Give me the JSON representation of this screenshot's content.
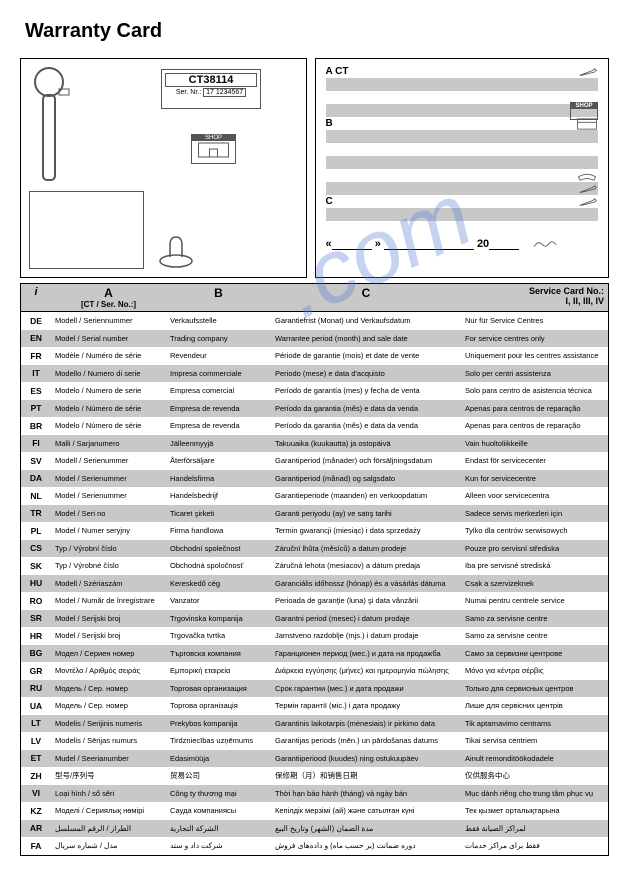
{
  "title": "Warranty Card",
  "watermark": ".com",
  "label": {
    "model": "CT38114",
    "serial_prefix": "Ser. Nr.:",
    "serial": "17 1234567"
  },
  "shop_label": "SHOP",
  "sections": {
    "A": "A    CT",
    "B": "B",
    "C": "C"
  },
  "date_row": {
    "open": "«",
    "mid": "»",
    "year_prefix": "20"
  },
  "table_header": {
    "info": "i",
    "a": "A",
    "a_sub": "[CT / Ser. No.:]",
    "b": "B",
    "c": "C",
    "d": "Service Card No.:",
    "d_sub": "I, II, III, IV"
  },
  "rows": [
    {
      "code": "DE",
      "a": "Modell / Seriennummer",
      "b": "Verkaufsstelle",
      "c": "Garantiefrist (Monat) und Verkaufsdatum",
      "d": "Nur für Service Centres"
    },
    {
      "code": "EN",
      "a": "Model / Serial number",
      "b": "Trading company",
      "c": "Warrantee period (month) and sale date",
      "d": "For service centres only"
    },
    {
      "code": "FR",
      "a": "Modèle / Numéro de série",
      "b": "Revendeur",
      "c": "Période de garantie (mois) et date de vente",
      "d": "Uniquement pour les centres assistance"
    },
    {
      "code": "IT",
      "a": "Modello / Numero di serie",
      "b": "Impresa commerciale",
      "c": "Periodo (mese) e data d'acquisto",
      "d": "Solo per centri assistenza"
    },
    {
      "code": "ES",
      "a": "Modelo / Numero de serie",
      "b": "Empresa comercial",
      "c": "Período de garantía (mes) y fecha de venta",
      "d": "Solo para centro de asistencia técnica"
    },
    {
      "code": "PT",
      "a": "Modelo / Número de série",
      "b": "Empresa de revenda",
      "c": "Período da garantia (mês) e data da venda",
      "d": "Apenas para centros de reparação"
    },
    {
      "code": "BR",
      "a": "Modelo / Número de série",
      "b": "Empresa de revenda",
      "c": "Período da garantia (mês) e data da venda",
      "d": "Apenas para centros de reparação"
    },
    {
      "code": "FI",
      "a": "Malli / Sarjanumero",
      "b": "Jälleenmyyjä",
      "c": "Takuuaika (kuukautta) ja ostopäivä",
      "d": "Vain huoltoliikkeille"
    },
    {
      "code": "SV",
      "a": "Modell / Serienummer",
      "b": "Återförsäljare",
      "c": "Garantiperiod (månader) och försäljningsdatum",
      "d": "Endast för servicecenter"
    },
    {
      "code": "DA",
      "a": "Model / Serienummer",
      "b": "Handelsfirma",
      "c": "Garantiperiod (månad) og salgsdato",
      "d": "Kun for servicecentre"
    },
    {
      "code": "NL",
      "a": "Model / Serienummer",
      "b": "Handelsbedrijf",
      "c": "Garantieperiode (maanden) en verkoopdatum",
      "d": "Alleen voor servicecentra"
    },
    {
      "code": "TR",
      "a": "Model / Seri no",
      "b": "Ticaret şirketi",
      "c": "Garanti periyodu (ay) ve satış tarihi",
      "d": "Sadece servis merkezleri için"
    },
    {
      "code": "PL",
      "a": "Model / Numer seryjny",
      "b": "Firma handlowa",
      "c": "Termin gwarancji (miesiąc) i data sprzedaży",
      "d": "Tylko dla centrów serwisowych"
    },
    {
      "code": "CS",
      "a": "Typ / Výrobní číslo",
      "b": "Obchodní společnost",
      "c": "Záruční lhůta (měsíců) a datum prodeje",
      "d": "Pouze pro servisní střediska"
    },
    {
      "code": "SK",
      "a": "Typ / Výrobné číslo",
      "b": "Obchodná spoločnosť",
      "c": "Záručná lehota (mesiacov) a dátum predaja",
      "d": "Iba pre servisné strediská"
    },
    {
      "code": "HU",
      "a": "Modell / Szériaszám",
      "b": "Kereskedő cég",
      "c": "Garanciális időhossz (hónap) és a vásárlás dátuma",
      "d": "Csak a szervizeknek"
    },
    {
      "code": "RO",
      "a": "Model / Număr de înregistrare",
      "b": "Vanzator",
      "c": "Perioada de garanţie (luna) şi data vânzării",
      "d": "Numai pentru centrele service"
    },
    {
      "code": "SR",
      "a": "Model / Serijski broj",
      "b": "Trgovinska kompanija",
      "c": "Garantni period (mesec) i datum prodaje",
      "d": "Samo za servisne centre"
    },
    {
      "code": "HR",
      "a": "Model / Serijski broj",
      "b": "Trgovačka tvrtka",
      "c": "Jamstveno razdoblje (mjs.) i datum prodaje",
      "d": "Samo za servisne centre"
    },
    {
      "code": "BG",
      "a": "Модел / Сериен номер",
      "b": "Търговска компания",
      "c": "Гаранционен период (мес.) и дата на продажба",
      "d": "Само за сервизни центрове"
    },
    {
      "code": "GR",
      "a": "Μοντέλο / Αριθμός σειράς",
      "b": "Εμπορική εταιρεία",
      "c": "Διάρκεια εγγύησης (μήνες) και ημερομηνία πώλησης",
      "d": "Μόνο για κέντρα σέρβις"
    },
    {
      "code": "RU",
      "a": "Модель / Сер. номер",
      "b": "Торговая организация",
      "c": "Срок гарантии (мес.) и дата продажи",
      "d": "Только для сервисных центров"
    },
    {
      "code": "UA",
      "a": "Модель / Сер. номер",
      "b": "Торгова організація",
      "c": "Термін гарантії (міс.) і дата продажу",
      "d": "Лише для сервісних центрів"
    },
    {
      "code": "LT",
      "a": "Modelis / Serijinis numeris",
      "b": "Prekybos kompanija",
      "c": "Garantinis laikotarpis (mėnesiais) ir pirkimo data",
      "d": "Tik aptarnavimo centrams"
    },
    {
      "code": "LV",
      "a": "Modelis / Sērijas numurs",
      "b": "Tirdzniecības uzņēmums",
      "c": "Garantijas periods (mēn.) un pārdošanas datums",
      "d": "Tikai servisa centriem"
    },
    {
      "code": "ET",
      "a": "Mudel / Seerianumber",
      "b": "Edasimüüja",
      "c": "Garantiiperiood (kuudes) ning ostukuupäev",
      "d": "Ainult remonditöökodadele"
    },
    {
      "code": "ZH",
      "a": "型号/序列号",
      "b": "贸易公司",
      "c": "保修期（月）和销售日期",
      "d": "仅供服务中心"
    },
    {
      "code": "VI",
      "a": "Loại hình / số sêri",
      "b": "Công ty thương mại",
      "c": "Thời hạn bảo hành (tháng) và ngày bán",
      "d": "Mục dành riêng cho trung tâm phục vụ"
    },
    {
      "code": "KZ",
      "a": "Моделі / Сериялық нөмірі",
      "b": "Сауда компаниясы",
      "c": "Кепілдік мерзімі (ай) және сатылған күні",
      "d": "Тек қызмет орталықтарына"
    },
    {
      "code": "AR",
      "a": "الطراز / الرقم المسلسل",
      "b": "الشركة التجارية",
      "c": "مدة الضمان (الشهر) وتاريخ البيع",
      "d": "لمراكز الصيانة فقط"
    },
    {
      "code": "FA",
      "a": "مدل / شماره سریال",
      "b": "شرکت داد و ستد",
      "c": "دوره ضمانت (بر حسب ماه) و داده‌های فروش",
      "d": "فقط برای مراکز خدمات"
    }
  ],
  "colors": {
    "gray": "#c8c8c8",
    "border": "#000000",
    "watermark": "#5b7fd6"
  }
}
